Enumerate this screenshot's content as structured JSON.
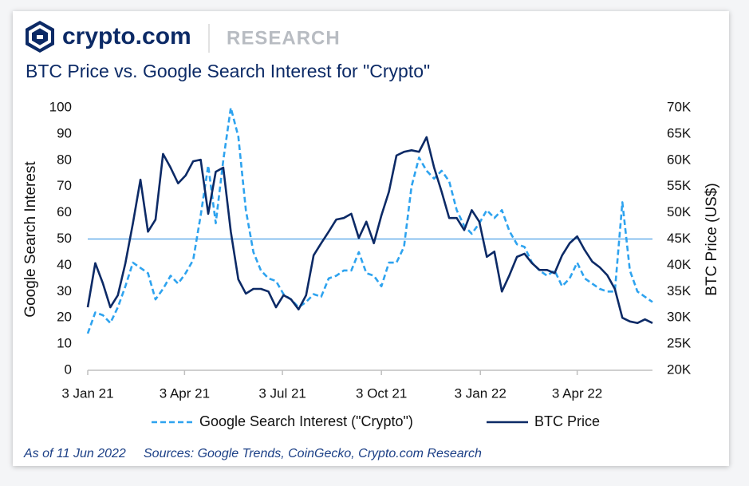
{
  "header": {
    "brand": "crypto.com",
    "section": "RESEARCH"
  },
  "footer": {
    "as_of": "As of 11 Jun 2022",
    "sources": "Sources: Google Trends, CoinGecko, Crypto.com Research"
  },
  "chart_data": {
    "type": "line",
    "title": "BTC Price vs. Google Search Interest for \"Crypto\"",
    "y_label": "Google Search Interest",
    "y2_label": "BTC Price (US$)",
    "x": [
      "2021-01-03",
      "2021-01-10",
      "2021-01-17",
      "2021-01-24",
      "2021-01-31",
      "2021-02-07",
      "2021-02-14",
      "2021-02-21",
      "2021-02-28",
      "2021-03-07",
      "2021-03-14",
      "2021-03-21",
      "2021-03-28",
      "2021-04-04",
      "2021-04-11",
      "2021-04-18",
      "2021-04-25",
      "2021-05-02",
      "2021-05-09",
      "2021-05-16",
      "2021-05-23",
      "2021-05-30",
      "2021-06-06",
      "2021-06-13",
      "2021-06-20",
      "2021-06-27",
      "2021-07-04",
      "2021-07-11",
      "2021-07-18",
      "2021-07-25",
      "2021-08-01",
      "2021-08-08",
      "2021-08-15",
      "2021-08-22",
      "2021-08-29",
      "2021-09-05",
      "2021-09-12",
      "2021-09-19",
      "2021-09-26",
      "2021-10-03",
      "2021-10-10",
      "2021-10-17",
      "2021-10-24",
      "2021-10-31",
      "2021-11-07",
      "2021-11-14",
      "2021-11-21",
      "2021-11-28",
      "2021-12-05",
      "2021-12-12",
      "2021-12-19",
      "2021-12-26",
      "2022-01-02",
      "2022-01-09",
      "2022-01-16",
      "2022-01-23",
      "2022-01-30",
      "2022-02-06",
      "2022-02-13",
      "2022-02-20",
      "2022-02-27",
      "2022-03-06",
      "2022-03-13",
      "2022-03-20",
      "2022-03-27",
      "2022-04-03",
      "2022-04-10",
      "2022-04-17",
      "2022-04-24",
      "2022-05-01",
      "2022-05-08",
      "2022-05-15",
      "2022-05-22",
      "2022-05-29",
      "2022-06-05",
      "2022-06-12"
    ],
    "xlim": [
      "2021-01-03",
      "2022-06-12"
    ],
    "xticks": [
      {
        "value": "2021-01-03",
        "label": "3 Jan 21"
      },
      {
        "value": "2021-04-03",
        "label": "3 Apr 21"
      },
      {
        "value": "2021-07-03",
        "label": "3 Jul 21"
      },
      {
        "value": "2021-10-03",
        "label": "3 Oct 21"
      },
      {
        "value": "2022-01-03",
        "label": "3 Jan 22"
      },
      {
        "value": "2022-04-03",
        "label": "3 Apr 22"
      }
    ],
    "ylim": [
      0,
      100
    ],
    "yticks": [
      0,
      10,
      20,
      30,
      40,
      50,
      60,
      70,
      80,
      90,
      100
    ],
    "y2lim": [
      20000,
      70000
    ],
    "y2ticks": [
      {
        "value": 20000,
        "label": "20K"
      },
      {
        "value": 25000,
        "label": "25K"
      },
      {
        "value": 30000,
        "label": "30K"
      },
      {
        "value": 35000,
        "label": "35K"
      },
      {
        "value": 40000,
        "label": "40K"
      },
      {
        "value": 45000,
        "label": "45K"
      },
      {
        "value": 50000,
        "label": "50K"
      },
      {
        "value": 55000,
        "label": "55K"
      },
      {
        "value": 60000,
        "label": "60K"
      },
      {
        "value": 65000,
        "label": "65K"
      },
      {
        "value": 70000,
        "label": "70K"
      }
    ],
    "reference_line": {
      "value": 50,
      "color": "#4a9fe6"
    },
    "legend": "bottom",
    "series": [
      {
        "name": "Google Search Interest (\"Crypto\")",
        "color": "#2ea3ef",
        "dashed": true,
        "values": [
          14,
          22,
          21,
          18,
          24,
          32,
          41,
          39,
          37,
          27,
          31,
          36,
          33,
          37,
          42,
          59,
          78,
          56,
          80,
          100,
          89,
          61,
          45,
          38,
          35,
          34,
          29,
          27,
          24,
          26,
          29,
          28,
          35,
          36,
          38,
          38,
          45,
          37,
          36,
          32,
          41,
          41,
          47,
          70,
          81,
          76,
          73,
          76,
          72,
          61,
          55,
          52,
          56,
          61,
          58,
          61,
          53,
          48,
          47,
          41,
          38,
          36,
          38,
          32,
          35,
          41,
          35,
          33,
          31,
          30,
          30,
          64,
          38,
          30,
          28,
          26
        ]
      },
      {
        "name": "BTC Price",
        "color": "#0c2a66",
        "axis": "y2",
        "values": [
          32000,
          40400,
          36600,
          32000,
          34300,
          40400,
          48000,
          56300,
          46400,
          48700,
          61200,
          58600,
          55600,
          57100,
          59800,
          60100,
          49800,
          57800,
          58600,
          46400,
          37300,
          34600,
          35500,
          35500,
          35000,
          32000,
          34300,
          33500,
          31600,
          34300,
          41900,
          44200,
          46400,
          48700,
          49000,
          49800,
          45200,
          48300,
          44200,
          49500,
          54000,
          60900,
          61600,
          61900,
          61600,
          64400,
          58600,
          54000,
          49000,
          49000,
          46700,
          50500,
          48300,
          41600,
          42600,
          35000,
          38100,
          41600,
          42200,
          40400,
          39100,
          39100,
          38500,
          41900,
          44200,
          45500,
          42900,
          40700,
          39600,
          38100,
          35500,
          30000,
          29300,
          29000,
          29700,
          29000
        ]
      }
    ]
  }
}
